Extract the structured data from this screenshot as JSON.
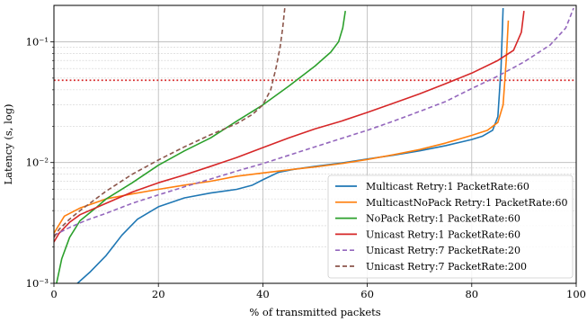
{
  "chart_data": {
    "type": "line",
    "title": "",
    "xlabel": "% of transmitted packets",
    "ylabel": "Latency (s, log)",
    "xlim": [
      0,
      100
    ],
    "ylim": [
      0.001,
      0.2
    ],
    "yscale": "log",
    "grid": true,
    "legend_position": "bottom-right",
    "x_ticks": [
      0,
      20,
      40,
      60,
      80,
      100
    ],
    "x_tick_labels": [
      "0",
      "20",
      "40",
      "60",
      "80",
      "100"
    ],
    "y_ticks": [
      0.001,
      0.01,
      0.1
    ],
    "y_tick_labels": [
      "10⁻³",
      "10⁻²",
      "10⁻¹"
    ],
    "reference_line": {
      "y": 0.048,
      "color": "#d62728",
      "style": "dotted"
    },
    "series": [
      {
        "name": "Multicast Retry:1 PacketRate:60",
        "color": "#1f77b4",
        "dash": "solid",
        "points": [
          [
            4.5,
            0.001
          ],
          [
            7,
            0.00125
          ],
          [
            10,
            0.0017
          ],
          [
            13,
            0.0025
          ],
          [
            16,
            0.0034
          ],
          [
            20,
            0.0043
          ],
          [
            25,
            0.0051
          ],
          [
            30,
            0.0056
          ],
          [
            35,
            0.006
          ],
          [
            38,
            0.0065
          ],
          [
            40,
            0.0072
          ],
          [
            43,
            0.0083
          ],
          [
            46,
            0.0088
          ],
          [
            50,
            0.0093
          ],
          [
            55,
            0.0099
          ],
          [
            60,
            0.0107
          ],
          [
            65,
            0.0115
          ],
          [
            70,
            0.0125
          ],
          [
            75,
            0.0138
          ],
          [
            80,
            0.0155
          ],
          [
            82,
            0.0165
          ],
          [
            84,
            0.0185
          ],
          [
            85,
            0.024
          ],
          [
            85.6,
            0.06
          ],
          [
            86,
            0.19
          ]
        ]
      },
      {
        "name": "MulticastNoPack Retry:1 PacketRate:60",
        "color": "#ff7f0e",
        "dash": "solid",
        "points": [
          [
            0,
            0.0026
          ],
          [
            2,
            0.0036
          ],
          [
            5,
            0.0042
          ],
          [
            10,
            0.005
          ],
          [
            15,
            0.0055
          ],
          [
            20,
            0.006
          ],
          [
            25,
            0.0065
          ],
          [
            30,
            0.007
          ],
          [
            35,
            0.0077
          ],
          [
            40,
            0.0082
          ],
          [
            45,
            0.0087
          ],
          [
            50,
            0.0092
          ],
          [
            55,
            0.0098
          ],
          [
            60,
            0.0106
          ],
          [
            65,
            0.0116
          ],
          [
            70,
            0.0128
          ],
          [
            75,
            0.0145
          ],
          [
            80,
            0.0168
          ],
          [
            83,
            0.0185
          ],
          [
            85,
            0.0215
          ],
          [
            86,
            0.03
          ],
          [
            86.6,
            0.07
          ],
          [
            87,
            0.15
          ]
        ]
      },
      {
        "name": "NoPack Retry:1 PacketRate:60",
        "color": "#2ca02c",
        "dash": "solid",
        "points": [
          [
            0.5,
            0.001
          ],
          [
            1.5,
            0.0016
          ],
          [
            3,
            0.0024
          ],
          [
            5,
            0.0033
          ],
          [
            8,
            0.0042
          ],
          [
            10,
            0.005
          ],
          [
            15,
            0.0068
          ],
          [
            20,
            0.0095
          ],
          [
            25,
            0.0125
          ],
          [
            30,
            0.016
          ],
          [
            35,
            0.022
          ],
          [
            40,
            0.03
          ],
          [
            45,
            0.043
          ],
          [
            50,
            0.063
          ],
          [
            53,
            0.082
          ],
          [
            54.5,
            0.1
          ],
          [
            55.3,
            0.13
          ],
          [
            55.8,
            0.18
          ]
        ]
      },
      {
        "name": "Unicast Retry:1 PacketRate:60",
        "color": "#d62728",
        "dash": "solid",
        "points": [
          [
            0,
            0.0022
          ],
          [
            1,
            0.0026
          ],
          [
            3,
            0.0032
          ],
          [
            5,
            0.0037
          ],
          [
            10,
            0.0046
          ],
          [
            15,
            0.0057
          ],
          [
            20,
            0.0068
          ],
          [
            25,
            0.0079
          ],
          [
            30,
            0.0093
          ],
          [
            35,
            0.011
          ],
          [
            40,
            0.0133
          ],
          [
            45,
            0.016
          ],
          [
            50,
            0.019
          ],
          [
            55,
            0.022
          ],
          [
            60,
            0.026
          ],
          [
            65,
            0.031
          ],
          [
            70,
            0.037
          ],
          [
            75,
            0.045
          ],
          [
            80,
            0.055
          ],
          [
            85,
            0.07
          ],
          [
            88,
            0.085
          ],
          [
            89.5,
            0.12
          ],
          [
            90,
            0.18
          ]
        ]
      },
      {
        "name": "Unicast Retry:7 PacketRate:20",
        "color": "#9467bd",
        "dash": "dashed",
        "points": [
          [
            0,
            0.0025
          ],
          [
            3,
            0.0029
          ],
          [
            6,
            0.0033
          ],
          [
            10,
            0.0038
          ],
          [
            15,
            0.0046
          ],
          [
            20,
            0.0054
          ],
          [
            25,
            0.0063
          ],
          [
            30,
            0.0073
          ],
          [
            35,
            0.0085
          ],
          [
            40,
            0.0098
          ],
          [
            45,
            0.0115
          ],
          [
            50,
            0.0135
          ],
          [
            55,
            0.0158
          ],
          [
            60,
            0.0185
          ],
          [
            65,
            0.022
          ],
          [
            70,
            0.0265
          ],
          [
            75,
            0.032
          ],
          [
            80,
            0.041
          ],
          [
            85,
            0.052
          ],
          [
            90,
            0.068
          ],
          [
            95,
            0.094
          ],
          [
            98,
            0.13
          ],
          [
            99.5,
            0.19
          ]
        ]
      },
      {
        "name": "Unicast Retry:7 PacketRate:200",
        "color": "#8c564b",
        "dash": "dashed",
        "points": [
          [
            0,
            0.0024
          ],
          [
            1,
            0.0028
          ],
          [
            3,
            0.0034
          ],
          [
            5,
            0.004
          ],
          [
            10,
            0.0058
          ],
          [
            15,
            0.008
          ],
          [
            20,
            0.0105
          ],
          [
            25,
            0.0135
          ],
          [
            30,
            0.017
          ],
          [
            35,
            0.021
          ],
          [
            38,
            0.025
          ],
          [
            40,
            0.03
          ],
          [
            41.5,
            0.04
          ],
          [
            42.5,
            0.06
          ],
          [
            43.3,
            0.09
          ],
          [
            43.8,
            0.13
          ],
          [
            44.2,
            0.19
          ]
        ]
      }
    ]
  }
}
